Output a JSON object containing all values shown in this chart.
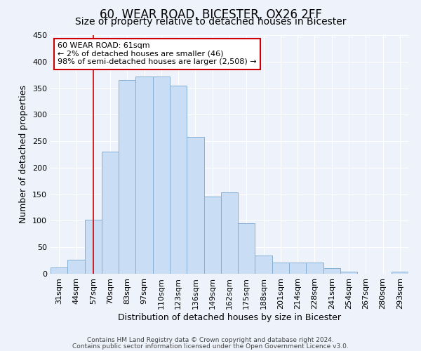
{
  "title": "60, WEAR ROAD, BICESTER, OX26 2FF",
  "subtitle": "Size of property relative to detached houses in Bicester",
  "xlabel": "Distribution of detached houses by size in Bicester",
  "ylabel": "Number of detached properties",
  "categories": [
    "31sqm",
    "44sqm",
    "57sqm",
    "70sqm",
    "83sqm",
    "97sqm",
    "110sqm",
    "123sqm",
    "136sqm",
    "149sqm",
    "162sqm",
    "175sqm",
    "188sqm",
    "201sqm",
    "214sqm",
    "228sqm",
    "241sqm",
    "254sqm",
    "267sqm",
    "280sqm",
    "293sqm"
  ],
  "values": [
    12,
    27,
    102,
    230,
    365,
    372,
    372,
    355,
    258,
    145,
    153,
    95,
    35,
    21,
    21,
    21,
    11,
    4,
    0,
    0,
    4
  ],
  "bar_color": "#c9ddf5",
  "bar_edge_color": "#85afd4",
  "marker_index": 2,
  "annotation_title": "60 WEAR ROAD: 61sqm",
  "annotation_line1": "← 2% of detached houses are smaller (46)",
  "annotation_line2": "98% of semi-detached houses are larger (2,508) →",
  "annotation_box_color": "#ffffff",
  "annotation_box_edge": "#cc0000",
  "marker_line_color": "#cc0000",
  "footer1": "Contains HM Land Registry data © Crown copyright and database right 2024.",
  "footer2": "Contains public sector information licensed under the Open Government Licence v3.0.",
  "ylim": [
    0,
    450
  ],
  "background_color": "#eef2fb",
  "grid_color": "#ffffff",
  "title_fontsize": 12,
  "subtitle_fontsize": 10,
  "axis_label_fontsize": 9,
  "tick_fontsize": 8,
  "footer_fontsize": 6.5
}
